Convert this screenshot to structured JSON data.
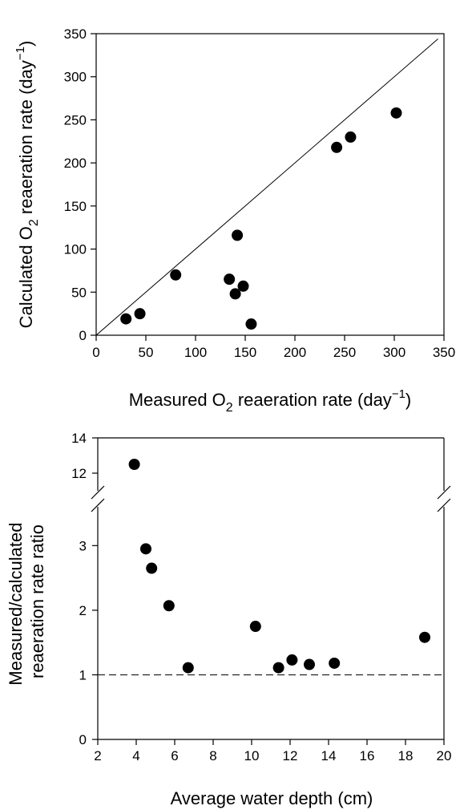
{
  "chart_data": [
    {
      "type": "scatter",
      "xlabel": {
        "prefix": "Measured O",
        "sub": "2",
        "middle": " reaeration rate (day",
        "sup": "−1",
        "suffix": ")"
      },
      "ylabel": {
        "prefix": "Calculated O",
        "sub": "2",
        "middle": " reaeration rate (day",
        "sup": "−1",
        "suffix": ")"
      },
      "xlim": [
        0,
        350
      ],
      "ylim": [
        0,
        350
      ],
      "xticks": [
        0,
        50,
        100,
        150,
        200,
        250,
        300,
        350
      ],
      "yticks": [
        0,
        50,
        100,
        150,
        200,
        250,
        300,
        350
      ],
      "reference_line": "1:1",
      "grid": false,
      "points": [
        {
          "x": 30,
          "y": 19
        },
        {
          "x": 44,
          "y": 25
        },
        {
          "x": 80,
          "y": 70
        },
        {
          "x": 134,
          "y": 65
        },
        {
          "x": 140,
          "y": 48
        },
        {
          "x": 142,
          "y": 116
        },
        {
          "x": 148,
          "y": 57
        },
        {
          "x": 156,
          "y": 13
        },
        {
          "x": 242,
          "y": 218
        },
        {
          "x": 256,
          "y": 230
        },
        {
          "x": 302,
          "y": 258
        }
      ]
    },
    {
      "type": "scatter",
      "xlabel": "Average water depth (cm)",
      "ylabel_lines": [
        "Measured/calculated",
        "reaeration rate ratio"
      ],
      "xlim": [
        2,
        20
      ],
      "xticks": [
        2,
        4,
        6,
        8,
        10,
        12,
        14,
        16,
        18,
        20
      ],
      "y_lower_range": [
        0,
        3.6
      ],
      "y_upper_range": [
        11,
        14
      ],
      "y_broken_axis": true,
      "yticks_lower": [
        0,
        1,
        2,
        3
      ],
      "yticks_upper": [
        12,
        14
      ],
      "reference_line": {
        "y": 1,
        "style": "dashed"
      },
      "grid": false,
      "points": [
        {
          "x": 3.9,
          "y": 12.5
        },
        {
          "x": 4.5,
          "y": 2.95
        },
        {
          "x": 4.8,
          "y": 2.65
        },
        {
          "x": 5.7,
          "y": 2.07
        },
        {
          "x": 6.7,
          "y": 1.11
        },
        {
          "x": 10.2,
          "y": 1.75
        },
        {
          "x": 11.4,
          "y": 1.11
        },
        {
          "x": 12.1,
          "y": 1.23
        },
        {
          "x": 13.0,
          "y": 1.16
        },
        {
          "x": 14.3,
          "y": 1.18
        },
        {
          "x": 19.0,
          "y": 1.58
        }
      ]
    }
  ]
}
